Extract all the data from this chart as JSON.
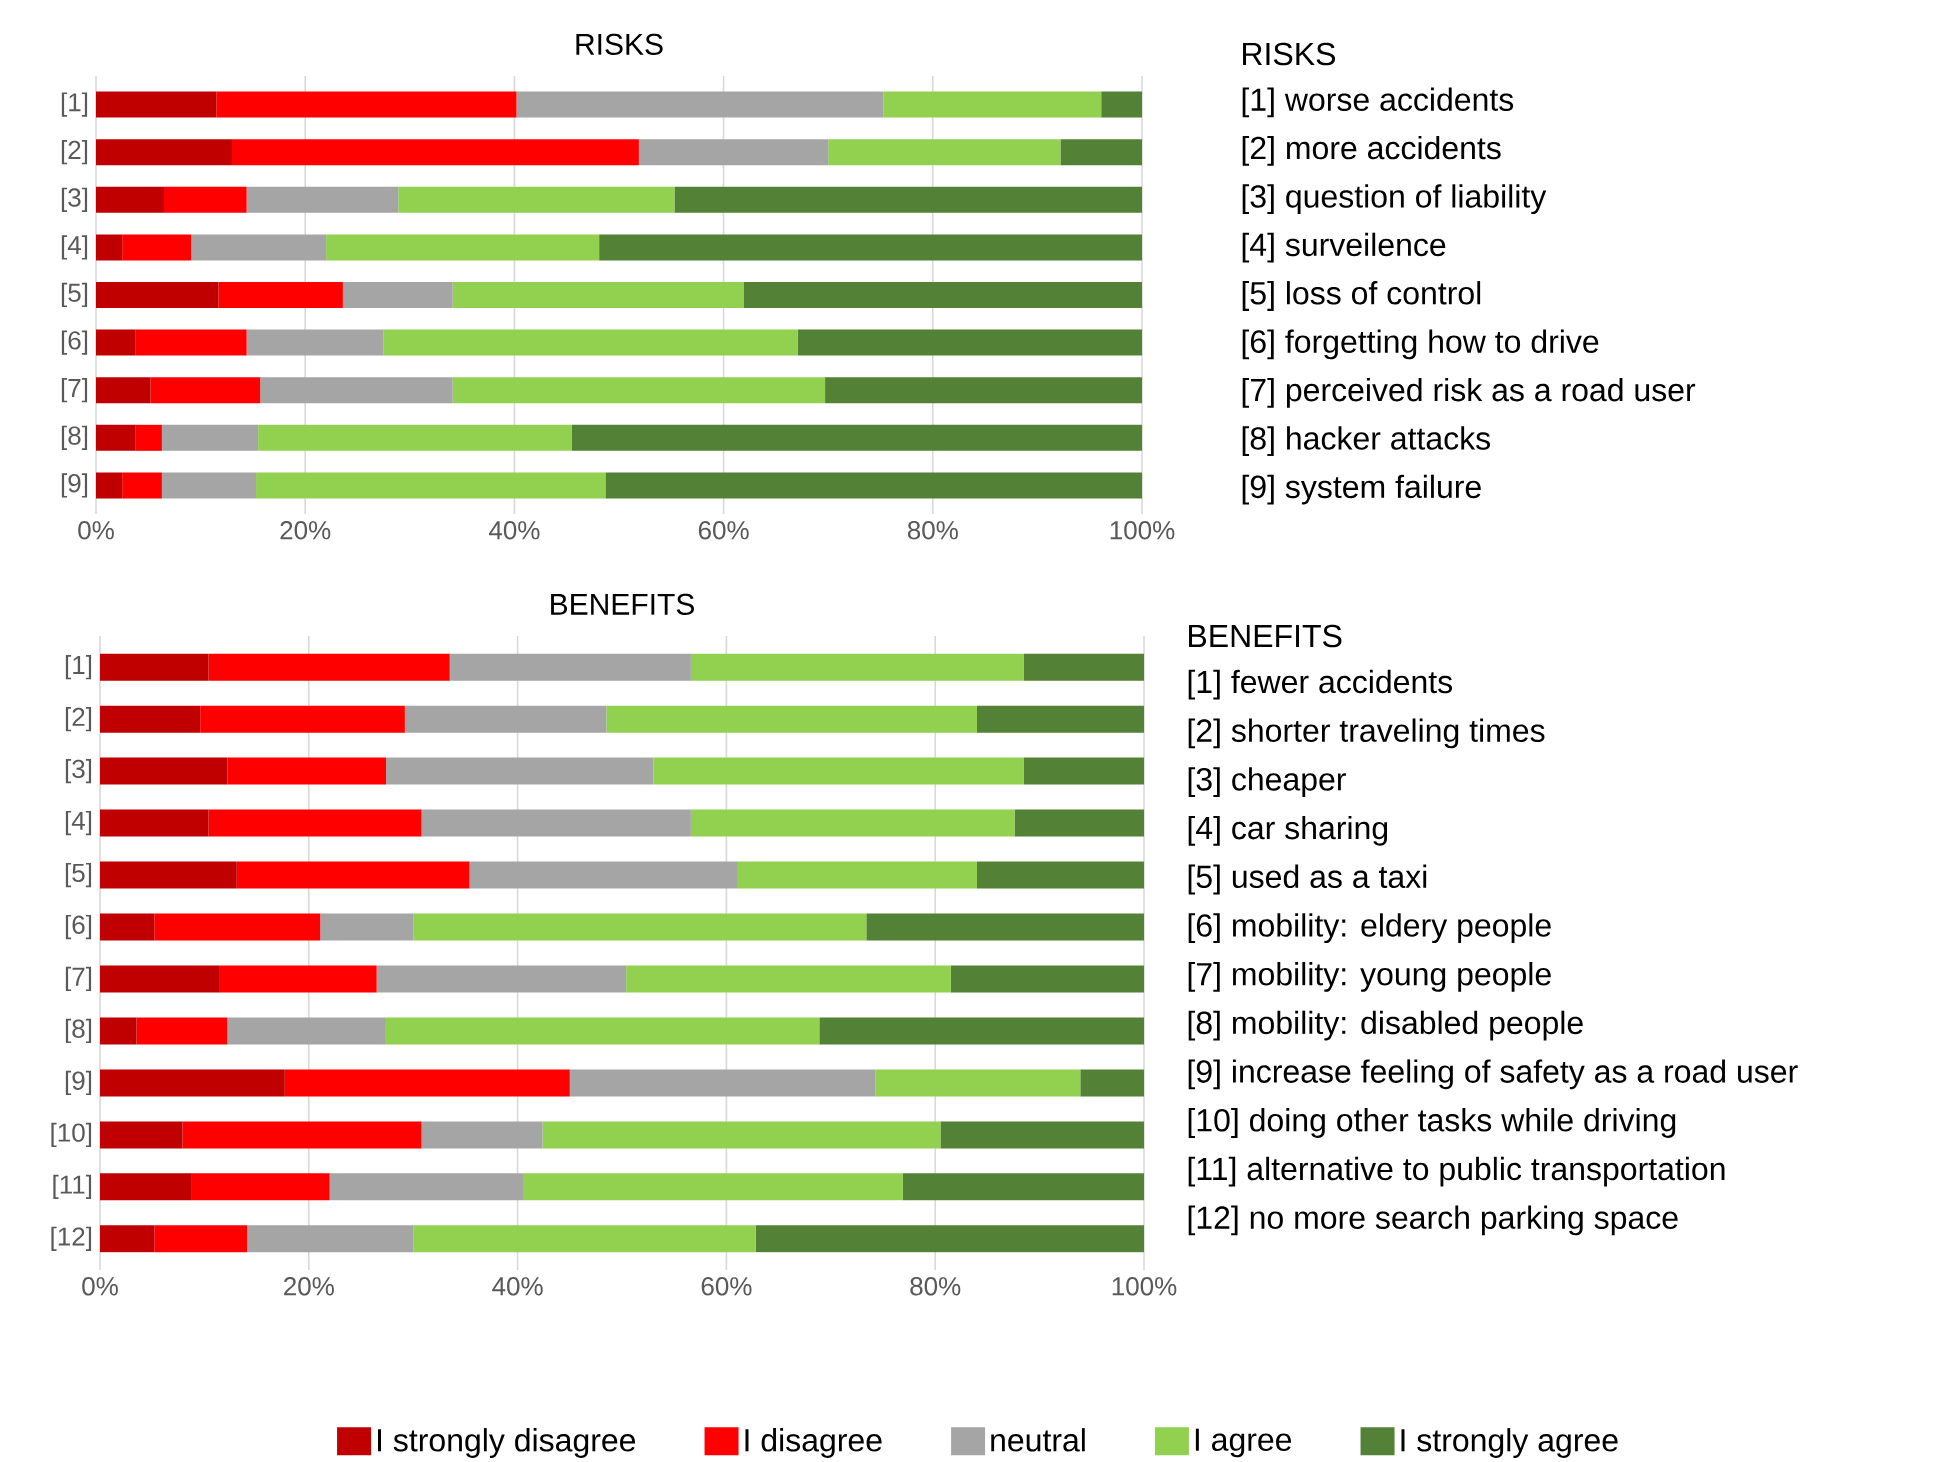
{
  "chart_data": [
    {
      "type": "bar",
      "orientation": "horizontal",
      "stacked": true,
      "title": "RISKS",
      "grid": "x",
      "legend": false,
      "categories": [
        "[1]",
        "[2]",
        "[3]",
        "[4]",
        "[5]",
        "[6]",
        "[7]",
        "[8]",
        "[9]"
      ],
      "xlim": [
        0,
        100
      ],
      "xticks": [
        {
          "value": 0,
          "label": "0%"
        },
        {
          "value": 20,
          "label": "20%"
        },
        {
          "value": 40,
          "label": "40%"
        },
        {
          "value": 60,
          "label": "60%"
        },
        {
          "value": 80,
          "label": "80%"
        },
        {
          "value": 100,
          "label": "100%"
        }
      ],
      "series": [
        {
          "color": "#c00000",
          "values": [
            11.5,
            13,
            6.5,
            2.5,
            11.7,
            3.8,
            5.2,
            3.8,
            2.5
          ]
        },
        {
          "color": "#ff0000",
          "values": [
            28.7,
            38.9,
            7.9,
            6.6,
            11.9,
            10.6,
            10.5,
            2.5,
            3.8
          ]
        },
        {
          "color": "#a5a5a5",
          "values": [
            35.1,
            18.1,
            14.5,
            12.9,
            10.5,
            13.1,
            18.4,
            9.2,
            9
          ]
        },
        {
          "color": "#92d050",
          "values": [
            20.8,
            22.2,
            26.4,
            26.1,
            27.8,
            39.6,
            35.6,
            30,
            33.4
          ]
        },
        {
          "color": "#538135",
          "values": [
            3.9,
            7.8,
            44.7,
            51.9,
            38.1,
            32.9,
            30.3,
            54.5,
            51.3
          ]
        }
      ],
      "annotations": [
        "RISKS",
        "[1] worse accidents",
        "[2] more accidents",
        "[3] question of liability",
        "[4] surveilence",
        "[5] loss of control",
        "[6] forgetting how to drive",
        "[7] perceived risk as a road user",
        "[8] hacker attacks",
        "[9] system failure"
      ]
    },
    {
      "type": "bar",
      "orientation": "horizontal",
      "stacked": true,
      "title": "BENEFITS",
      "grid": "x",
      "legend": "bottom",
      "categories": [
        "[1]",
        "[2]",
        "[3]",
        "[4]",
        "[5]",
        "[6]",
        "[7]",
        "[8]",
        "[9]",
        "[10]",
        "[11]",
        "[12]"
      ],
      "xlim": [
        0,
        100
      ],
      "xticks": [
        {
          "value": 0,
          "label": "0%"
        },
        {
          "value": 20,
          "label": "20%"
        },
        {
          "value": 40,
          "label": "40%"
        },
        {
          "value": 60,
          "label": "60%"
        },
        {
          "value": 80,
          "label": "80%"
        },
        {
          "value": 100,
          "label": "100%"
        }
      ],
      "series": [
        {
          "name": "I strongly disagree",
          "color": "#c00000",
          "values": [
            10.4,
            9.6,
            12.2,
            10.4,
            13.1,
            5.2,
            11.4,
            3.5,
            17.7,
            7.9,
            8.8,
            5.2
          ]
        },
        {
          "name": "I disagree",
          "color": "#ff0000",
          "values": [
            23.1,
            19.6,
            15.2,
            20.4,
            22.3,
            15.9,
            15.1,
            8.7,
            27.3,
            22.9,
            13.2,
            8.9
          ]
        },
        {
          "name": "neutral",
          "color": "#a5a5a5",
          "values": [
            23.1,
            19.3,
            25.6,
            25.8,
            25.7,
            8.9,
            23.9,
            15.1,
            29.3,
            11.6,
            18.6,
            15.9
          ]
        },
        {
          "name": "I agree",
          "color": "#92d050",
          "values": [
            31.9,
            35.5,
            35.5,
            31,
            22.9,
            43.4,
            31.1,
            41.6,
            19.6,
            38.1,
            36.3,
            32.8
          ]
        },
        {
          "name": "I strongly agree",
          "color": "#538135",
          "values": [
            11.5,
            16,
            11.5,
            12.4,
            16,
            26.6,
            18.5,
            31.1,
            6.1,
            19.5,
            23.1,
            37.2
          ]
        }
      ],
      "annotations": [
        "BENEFITS",
        "[1] fewer accidents",
        "[2] shorter traveling times",
        "[3] cheaper",
        "[4] car sharing",
        "[5] used as a taxi",
        "[6] mobility: eldery people",
        "[7] mobility: young people",
        "[8] mobility: disabled people",
        "[9] increase feeling of safety as a road user",
        "[10] doing other tasks while driving",
        "[11] alternative to public transportation",
        "[12] no more search parking space"
      ]
    }
  ]
}
